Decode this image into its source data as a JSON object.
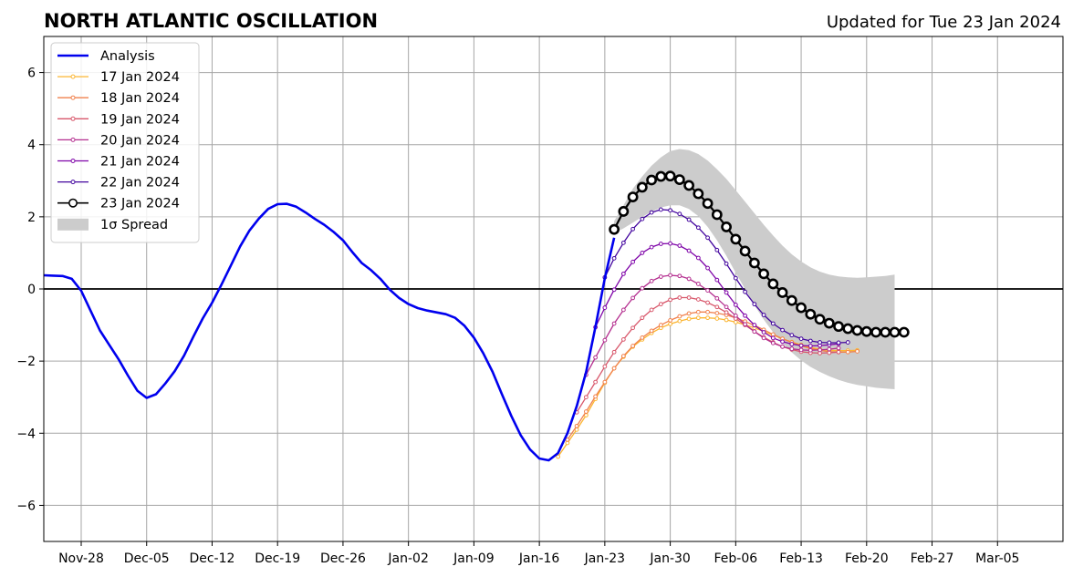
{
  "chart_data": {
    "type": "line",
    "title": "NORTH ATLANTIC OSCILLATION",
    "subtitle": "Updated for Tue 23 Jan 2024",
    "xlabel": "",
    "ylabel": "",
    "xlim": [
      "2023-11-24",
      "2024-03-12"
    ],
    "ylim": [
      -7,
      7
    ],
    "grid": true,
    "zero_line": true,
    "legend_position": "upper-left",
    "x_ticks": [
      {
        "date": "2023-11-28",
        "label": "Nov-28"
      },
      {
        "date": "2023-12-05",
        "label": "Dec-05"
      },
      {
        "date": "2023-12-12",
        "label": "Dec-12"
      },
      {
        "date": "2023-12-19",
        "label": "Dec-19"
      },
      {
        "date": "2023-12-26",
        "label": "Dec-26"
      },
      {
        "date": "2024-01-02",
        "label": "Jan-02"
      },
      {
        "date": "2024-01-09",
        "label": "Jan-09"
      },
      {
        "date": "2024-01-16",
        "label": "Jan-16"
      },
      {
        "date": "2024-01-23",
        "label": "Jan-23"
      },
      {
        "date": "2024-01-30",
        "label": "Jan-30"
      },
      {
        "date": "2024-02-06",
        "label": "Feb-06"
      },
      {
        "date": "2024-02-13",
        "label": "Feb-13"
      },
      {
        "date": "2024-02-20",
        "label": "Feb-20"
      },
      {
        "date": "2024-02-27",
        "label": "Feb-27"
      },
      {
        "date": "2024-03-05",
        "label": "Mar-05"
      }
    ],
    "y_ticks": [
      {
        "value": 6,
        "label": "6"
      },
      {
        "value": 4,
        "label": "4"
      },
      {
        "value": 2,
        "label": "2"
      },
      {
        "value": 0,
        "label": "0"
      },
      {
        "value": -2,
        "label": "−2"
      },
      {
        "value": -4,
        "label": "−4"
      },
      {
        "value": -6,
        "label": "−6"
      }
    ],
    "analysis": {
      "name": "Analysis",
      "color": "#0000ee",
      "start_date": "2023-11-24",
      "values": [
        0.38,
        0.37,
        0.36,
        0.28,
        -0.05,
        -0.6,
        -1.15,
        -1.55,
        -1.95,
        -2.4,
        -2.82,
        -3.02,
        -2.92,
        -2.62,
        -2.28,
        -1.85,
        -1.32,
        -0.82,
        -0.38,
        0.12,
        0.65,
        1.18,
        1.62,
        1.95,
        2.22,
        2.35,
        2.36,
        2.28,
        2.12,
        1.94,
        1.78,
        1.58,
        1.35,
        1.02,
        0.72,
        0.52,
        0.28,
        -0.02,
        -0.25,
        -0.42,
        -0.53,
        -0.6,
        -0.65,
        -0.7,
        -0.8,
        -1.02,
        -1.35,
        -1.78,
        -2.3,
        -2.92,
        -3.52,
        -4.05,
        -4.45,
        -4.7,
        -4.75,
        -4.55,
        -4.0,
        -3.25,
        -2.3,
        -1.05,
        0.3,
        1.42
      ]
    },
    "spread": {
      "name": "1σ Spread",
      "color": "#cccccc",
      "start_date": "2024-01-24",
      "upper": [
        1.88,
        2.32,
        2.78,
        3.12,
        3.42,
        3.65,
        3.82,
        3.88,
        3.85,
        3.74,
        3.56,
        3.32,
        3.05,
        2.74,
        2.42,
        2.1,
        1.78,
        1.48,
        1.2,
        0.96,
        0.76,
        0.6,
        0.48,
        0.4,
        0.35,
        0.32,
        0.31,
        0.32,
        0.34,
        0.36,
        0.4
      ],
      "lower": [
        1.55,
        1.68,
        1.84,
        2.0,
        2.14,
        2.26,
        2.32,
        2.32,
        2.22,
        2.02,
        1.72,
        1.35,
        0.92,
        0.45,
        0.0,
        -0.45,
        -0.85,
        -1.2,
        -1.5,
        -1.76,
        -1.98,
        -2.16,
        -2.3,
        -2.42,
        -2.52,
        -2.6,
        -2.66,
        -2.7,
        -2.74,
        -2.76,
        -2.78
      ]
    },
    "forecasts": [
      {
        "name": "17 Jan 2024",
        "color": "#fbb531",
        "start_date": "2024-01-18",
        "values": [
          -4.65,
          -4.27,
          -3.9,
          -3.5,
          -3.05,
          -2.6,
          -2.2,
          -1.88,
          -1.6,
          -1.4,
          -1.22,
          -1.08,
          -0.97,
          -0.89,
          -0.83,
          -0.8,
          -0.8,
          -0.82,
          -0.86,
          -0.92,
          -0.99,
          -1.08,
          -1.18,
          -1.28,
          -1.38,
          -1.47,
          -1.55,
          -1.62,
          -1.67,
          -1.7,
          -1.71,
          -1.71,
          -1.7
        ]
      },
      {
        "name": "18 Jan 2024",
        "color": "#f1814d",
        "start_date": "2024-01-19",
        "values": [
          -4.18,
          -3.8,
          -3.4,
          -2.98,
          -2.58,
          -2.2,
          -1.86,
          -1.58,
          -1.35,
          -1.16,
          -1.0,
          -0.87,
          -0.76,
          -0.68,
          -0.64,
          -0.64,
          -0.67,
          -0.72,
          -0.8,
          -0.9,
          -1.01,
          -1.13,
          -1.26,
          -1.38,
          -1.48,
          -1.58,
          -1.65,
          -1.7,
          -1.74,
          -1.75,
          -1.75,
          -1.73
        ]
      },
      {
        "name": "19 Jan 2024",
        "color": "#d8576b",
        "start_date": "2024-01-20",
        "values": [
          -3.42,
          -3.0,
          -2.58,
          -2.15,
          -1.75,
          -1.4,
          -1.08,
          -0.8,
          -0.58,
          -0.42,
          -0.3,
          -0.24,
          -0.24,
          -0.29,
          -0.38,
          -0.5,
          -0.65,
          -0.82,
          -1.0,
          -1.18,
          -1.34,
          -1.48,
          -1.6,
          -1.68,
          -1.74,
          -1.77,
          -1.78,
          -1.77,
          -1.75
        ]
      },
      {
        "name": "20 Jan 2024",
        "color": "#b42e8f",
        "start_date": "2024-01-21",
        "values": [
          -2.38,
          -1.9,
          -1.42,
          -0.96,
          -0.58,
          -0.25,
          0.02,
          0.22,
          0.34,
          0.38,
          0.36,
          0.28,
          0.14,
          -0.04,
          -0.26,
          -0.5,
          -0.74,
          -0.98,
          -1.18,
          -1.36,
          -1.5,
          -1.6,
          -1.66,
          -1.69,
          -1.7,
          -1.69,
          -1.67,
          -1.64
        ]
      },
      {
        "name": "21 Jan 2024",
        "color": "#7e03a8",
        "start_date": "2024-01-22",
        "values": [
          -1.06,
          -0.52,
          -0.02,
          0.42,
          0.75,
          1.0,
          1.16,
          1.25,
          1.26,
          1.2,
          1.06,
          0.86,
          0.58,
          0.25,
          -0.1,
          -0.44,
          -0.74,
          -1.0,
          -1.2,
          -1.36,
          -1.46,
          -1.53,
          -1.57,
          -1.58,
          -1.57,
          -1.55,
          -1.52
        ]
      },
      {
        "name": "22 Jan 2024",
        "color": "#42049e",
        "start_date": "2024-01-23",
        "values": [
          0.32,
          0.85,
          1.28,
          1.66,
          1.94,
          2.12,
          2.2,
          2.18,
          2.08,
          1.92,
          1.7,
          1.42,
          1.08,
          0.7,
          0.3,
          -0.08,
          -0.42,
          -0.72,
          -0.96,
          -1.14,
          -1.28,
          -1.38,
          -1.44,
          -1.48,
          -1.49,
          -1.49,
          -1.48
        ]
      },
      {
        "name": "23 Jan 2024",
        "color": "#000000",
        "start_date": "2024-01-24",
        "values": [
          1.65,
          2.15,
          2.55,
          2.82,
          3.02,
          3.12,
          3.13,
          3.03,
          2.87,
          2.64,
          2.37,
          2.06,
          1.72,
          1.38,
          1.05,
          0.72,
          0.42,
          0.14,
          -0.1,
          -0.32,
          -0.52,
          -0.7,
          -0.84,
          -0.95,
          -1.04,
          -1.1,
          -1.15,
          -1.18,
          -1.2,
          -1.2,
          -1.2,
          -1.2
        ]
      }
    ]
  }
}
